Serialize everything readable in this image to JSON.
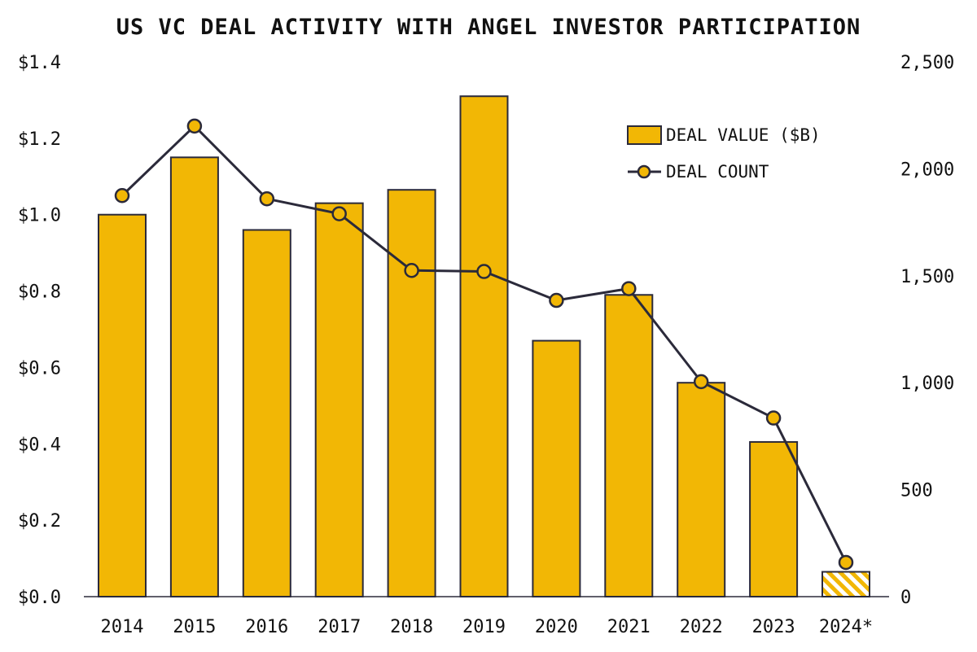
{
  "chart_data": {
    "type": "bar",
    "title": "US VC DEAL ACTIVITY WITH ANGEL INVESTOR PARTICIPATION",
    "categories": [
      "2014",
      "2015",
      "2016",
      "2017",
      "2018",
      "2019",
      "2020",
      "2021",
      "2022",
      "2023",
      "2024*"
    ],
    "series": [
      {
        "name": "DEAL VALUE ($B)",
        "type": "bar",
        "axis": "left",
        "values": [
          1.0,
          1.15,
          0.96,
          1.03,
          1.065,
          1.31,
          0.67,
          0.79,
          0.56,
          0.405,
          0.065
        ],
        "partial_last": true
      },
      {
        "name": "DEAL COUNT",
        "type": "line",
        "axis": "right",
        "values": [
          1875,
          2200,
          1860,
          1790,
          1525,
          1520,
          1385,
          1440,
          1005,
          835,
          160
        ]
      }
    ],
    "y_left": {
      "min": 0,
      "max": 1.4,
      "ticks": [
        "$0.0",
        "$0.2",
        "$0.4",
        "$0.6",
        "$0.8",
        "$1.0",
        "$1.2",
        "$1.4"
      ]
    },
    "y_right": {
      "min": 0,
      "max": 2500,
      "ticks": [
        "0",
        "500",
        "1,000",
        "1,500",
        "2,000",
        "2,500"
      ]
    },
    "legend": {
      "position": "top-right"
    },
    "grid": false,
    "colors": {
      "bar": "#F2B705",
      "stroke": "#2B2A3A",
      "text": "#111111"
    }
  }
}
